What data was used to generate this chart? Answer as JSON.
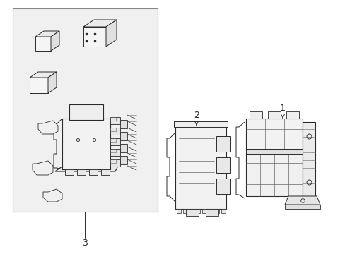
{
  "background_color": "#ffffff",
  "label1": "1",
  "label2": "2",
  "label3": "3",
  "lc": "#2a2a2a",
  "ll": "#666666",
  "bg_box": "#ebebeb",
  "fc_part": "#f0f0f0",
  "fc_dark": "#d8d8d8"
}
